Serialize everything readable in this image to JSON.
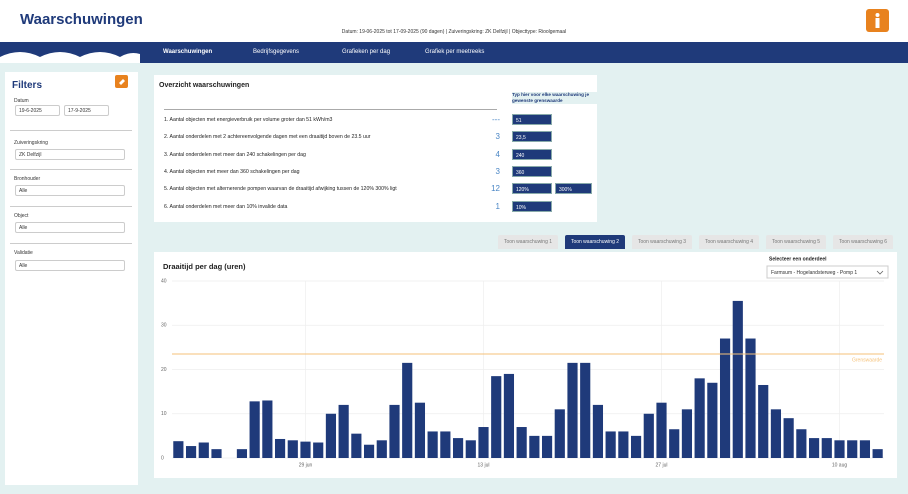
{
  "header": {
    "title": "Waarschuwingen",
    "subtitle": "Datum: 19-06-2025 tot 17-09-2025 (90 dagen) | Zuiveringskring: ZK Delfzijl | Objecttype: Rioolgemaal"
  },
  "nav": [
    "Waarschuwingen",
    "Bedrijfsgegevens",
    "Grafieken per dag",
    "Grafiek per meetreeks"
  ],
  "filters": {
    "title": "Filters",
    "date": {
      "label": "Datum",
      "start": "19-6-2025",
      "end": "17-9-2025"
    },
    "fields": [
      {
        "label": "Zuiveringskring",
        "value": "ZK Delfzijl"
      },
      {
        "label": "Bronhouder",
        "value": "Alle"
      },
      {
        "label": "Object",
        "value": "Alle"
      },
      {
        "label": "Validatie",
        "value": "Alle"
      }
    ]
  },
  "overview": {
    "title": "Overzicht waarschuwingen",
    "hint": "Typ hier voor elke waarschuwing je gewenste grenswaarde",
    "rows": [
      {
        "text": "1. Aantal objecten met energieverbruik per volume groter dan 51 kWh/m3",
        "count": "---",
        "inputs": [
          "51"
        ]
      },
      {
        "text": "2. Aantal onderdelen met 2 achtereenvolgende dagen met een draaitijd boven de 23.5 uur",
        "count": 3,
        "inputs": [
          "23,5"
        ]
      },
      {
        "text": "3. Aantal onderdelen met meer dan 240 schakelingen per dag",
        "count": 4,
        "inputs": [
          "240"
        ]
      },
      {
        "text": "4. Aantal objecten met meer dan 360 schakelingen per dag",
        "count": 3,
        "inputs": [
          "360"
        ]
      },
      {
        "text": "5. Aantal objecten met alternerende pompen waarvan de draaitijd afwijking tussen de 120% 300% ligt",
        "count": 12,
        "inputs": [
          "120%",
          "300%"
        ]
      },
      {
        "text": "6. Aantal onderdelen met meer dan 10% invalide data",
        "count": 1,
        "inputs": [
          "10%"
        ]
      }
    ]
  },
  "tabs": [
    "Toon waarschuwing 1",
    "Toon waarschuwing 2",
    "Toon waarschuwing 3",
    "Toon waarschuwing 4",
    "Toon waarschuwing 5",
    "Toon waarschuwing 6"
  ],
  "active_tab": 1,
  "selector": {
    "label": "Selecteer een onderdeel",
    "value": "Farmsum - Hogelandsterweg - Pomp 1"
  },
  "chart_data": {
    "type": "bar",
    "title": "Draaitijd per dag (uren)",
    "categories": [
      null,
      null,
      null,
      null,
      null,
      null,
      null,
      null,
      null,
      null,
      "29 jun",
      null,
      null,
      null,
      null,
      null,
      null,
      null,
      null,
      null,
      null,
      null,
      null,
      null,
      "13 jul",
      null,
      null,
      null,
      null,
      null,
      null,
      null,
      null,
      null,
      null,
      null,
      null,
      null,
      "27 jul",
      null,
      null,
      null,
      null,
      null,
      null,
      null,
      null,
      null,
      null,
      null,
      null,
      null,
      "10 aug",
      null,
      null,
      null
    ],
    "values": [
      3.8,
      2.7,
      3.5,
      2,
      null,
      2,
      12.8,
      13,
      4.3,
      4,
      3.7,
      3.5,
      10,
      12,
      5.5,
      3,
      4,
      12,
      21.5,
      12.5,
      6,
      6,
      4.5,
      4,
      7,
      18.5,
      19,
      7,
      5,
      5,
      11,
      21.5,
      21.5,
      12,
      6,
      6,
      5,
      10,
      12.5,
      6.5,
      11,
      18,
      17,
      27,
      35.5,
      27,
      16.5,
      11,
      9,
      6.5,
      4.5,
      4.5,
      4,
      4,
      4,
      2
    ],
    "color": "#1f3a7a",
    "ylim": [
      0,
      40
    ],
    "yticks": [
      0,
      10,
      20,
      30,
      40
    ],
    "grid": true,
    "threshold": {
      "value": 23.5,
      "label": "Grenswaarde",
      "color": "#f5c27a"
    }
  }
}
